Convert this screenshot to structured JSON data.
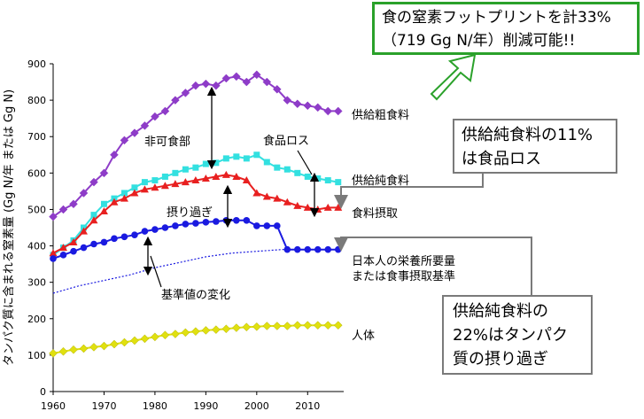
{
  "chart_data": {
    "type": "line",
    "ylabel": "タンパク質に含まれる窒素量 (Gg N/年 または Gg N)",
    "xlim": [
      1960,
      2015
    ],
    "ylim": [
      0,
      900
    ],
    "x_ticks": [
      "1960",
      "1970",
      "1980",
      "1990",
      "2000",
      "2010"
    ],
    "y_ticks": [
      "0",
      "100",
      "200",
      "300",
      "400",
      "500",
      "600",
      "700",
      "800",
      "900"
    ],
    "series": [
      {
        "name": "供給粗食料",
        "color": "#8e3cc8",
        "marker": "diamond",
        "x": [
          1960,
          1962,
          1964,
          1966,
          1968,
          1970,
          1972,
          1974,
          1976,
          1978,
          1980,
          1982,
          1984,
          1986,
          1988,
          1990,
          1992,
          1994,
          1996,
          1998,
          2000,
          2002,
          2004,
          2006,
          2008,
          2010,
          2012,
          2014,
          2016
        ],
        "y": [
          480,
          500,
          515,
          545,
          575,
          600,
          650,
          690,
          710,
          730,
          755,
          770,
          800,
          820,
          840,
          845,
          840,
          860,
          865,
          850,
          870,
          850,
          830,
          800,
          790,
          785,
          780,
          770,
          770
        ]
      },
      {
        "name": "供給純食料",
        "color": "#33e0e0",
        "marker": "square",
        "x": [
          1960,
          1962,
          1964,
          1966,
          1968,
          1970,
          1972,
          1974,
          1976,
          1978,
          1980,
          1982,
          1984,
          1986,
          1988,
          1990,
          1992,
          1994,
          1996,
          1998,
          2000,
          2002,
          2004,
          2006,
          2008,
          2010,
          2012,
          2014,
          2016
        ],
        "y": [
          375,
          395,
          415,
          450,
          485,
          515,
          530,
          545,
          560,
          575,
          580,
          590,
          600,
          610,
          615,
          625,
          628,
          640,
          645,
          640,
          650,
          630,
          615,
          610,
          600,
          590,
          585,
          580,
          575
        ]
      },
      {
        "name": "食料摂取",
        "color": "#e82020",
        "marker": "triangle",
        "x": [
          1960,
          1962,
          1964,
          1966,
          1968,
          1970,
          1972,
          1974,
          1976,
          1978,
          1980,
          1982,
          1984,
          1986,
          1988,
          1990,
          1992,
          1994,
          1996,
          1998,
          2000,
          2002,
          2004,
          2006,
          2008,
          2010,
          2012,
          2014,
          2016
        ],
        "y": [
          380,
          395,
          410,
          440,
          470,
          495,
          520,
          530,
          545,
          555,
          560,
          565,
          570,
          575,
          580,
          585,
          590,
          595,
          590,
          580,
          545,
          535,
          530,
          520,
          510,
          505,
          500,
          505,
          505
        ]
      },
      {
        "name": "日本人の栄養所要量または食事摂取基準",
        "color": "#1a1ae0",
        "marker": "circle",
        "x": [
          1960,
          1962,
          1964,
          1966,
          1968,
          1970,
          1972,
          1974,
          1976,
          1978,
          1980,
          1982,
          1984,
          1986,
          1988,
          1990,
          1992,
          1994,
          1996,
          1998,
          2000,
          2002,
          2004,
          2006,
          2008,
          2010,
          2012,
          2014,
          2016
        ],
        "y": [
          365,
          375,
          385,
          395,
          405,
          410,
          420,
          425,
          430,
          440,
          445,
          450,
          455,
          460,
          462,
          465,
          467,
          470,
          470,
          470,
          455,
          455,
          455,
          390,
          390,
          390,
          390,
          390,
          390
        ]
      },
      {
        "name": "dotted",
        "color": "#1a1ae0",
        "marker": "none",
        "dashed": true,
        "x": [
          1960,
          1965,
          1970,
          1975,
          1980,
          1985,
          1990,
          1995,
          2000,
          2005,
          2010,
          2016
        ],
        "y": [
          270,
          290,
          305,
          320,
          340,
          355,
          370,
          380,
          385,
          390,
          390,
          390
        ]
      },
      {
        "name": "人体",
        "color": "#e0e010",
        "marker": "diamond",
        "x": [
          1960,
          1962,
          1964,
          1966,
          1968,
          1970,
          1972,
          1974,
          1976,
          1978,
          1980,
          1982,
          1984,
          1986,
          1988,
          1990,
          1992,
          1994,
          1996,
          1998,
          2000,
          2002,
          2004,
          2006,
          2008,
          2010,
          2012,
          2014,
          2016
        ],
        "y": [
          105,
          110,
          115,
          118,
          122,
          125,
          130,
          135,
          140,
          145,
          150,
          155,
          158,
          162,
          165,
          168,
          170,
          172,
          175,
          177,
          178,
          180,
          180,
          180,
          182,
          182,
          182,
          182,
          182
        ]
      }
    ],
    "annotations": {
      "hikashoku": "非可食部",
      "shokuhin_loss": "食品ロス",
      "torisugi": "摂り過ぎ",
      "kijunchi": "基準値の変化"
    },
    "series_labels": {
      "kyokyu_so": "供給粗食料",
      "kyokyu_jun": "供給純食料",
      "sesshu": "食料摂取",
      "standard_line1": "日本人の栄養所要量",
      "standard_line2": "または食事摂取基準",
      "jintai": "人体"
    }
  },
  "callouts": {
    "top_line1": "食の窒素フットプリントを計33%",
    "top_line2": "（719 Gg N/年）削減可能!!",
    "loss_line1": "供給純食料の11%",
    "loss_line2": "は食品ロス",
    "over_line1": "供給純食料の",
    "over_line2": "22%はタンパク",
    "over_line3": "質の摂り過ぎ"
  },
  "colors": {
    "callout_green": "#2aa12a",
    "callout_gray": "#7a7a7a",
    "arrow_green": "#2aa12a"
  }
}
